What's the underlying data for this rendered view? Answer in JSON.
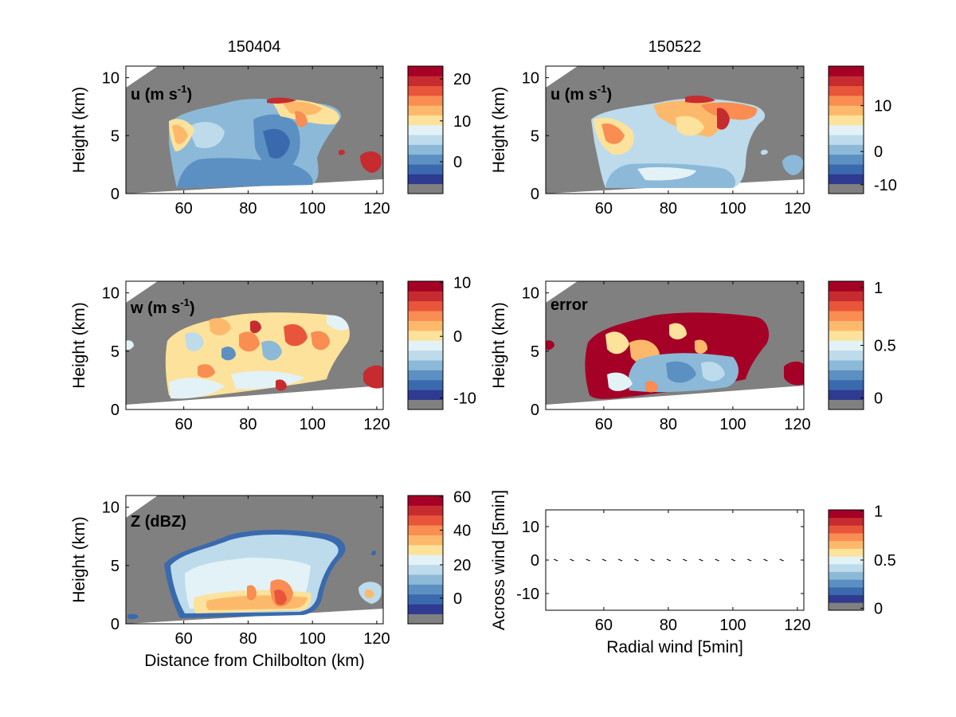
{
  "chart_data": {
    "type": "heatmap",
    "palette": [
      "#808080",
      "#2f3a91",
      "#3a6aad",
      "#5c90c2",
      "#8cb9d8",
      "#bddbeb",
      "#e3f2f6",
      "#fde29b",
      "#fdb96b",
      "#f98d52",
      "#e9553b",
      "#c62c2f",
      "#a50026"
    ],
    "panel_titles": [
      {
        "text": "150404"
      },
      {
        "text": "150522"
      }
    ],
    "panels": [
      {
        "id": "u-150404",
        "label": "u (m s",
        "label_sup": "-1",
        "label_close": ")",
        "ylabel": "Height (km)",
        "xlabel": "",
        "xlim": [
          42,
          122
        ],
        "ylim": [
          0,
          11
        ],
        "xticks": [
          "60",
          "80",
          "100",
          "120"
        ],
        "yticks": [
          "0",
          "5",
          "10"
        ],
        "colorbar_ticks": [
          "20",
          "10",
          "0"
        ]
      },
      {
        "id": "u-150522",
        "label": "u (m s",
        "label_sup": "-1",
        "label_close": ")",
        "ylabel": "Height (km)",
        "xlabel": "",
        "xlim": [
          42,
          122
        ],
        "ylim": [
          0,
          11
        ],
        "xticks": [
          "60",
          "80",
          "100",
          "120"
        ],
        "yticks": [
          "0",
          "5",
          "10"
        ],
        "colorbar_ticks": [
          "10",
          "0",
          "-10"
        ]
      },
      {
        "id": "w-150404",
        "label": "w (m s",
        "label_sup": "-1",
        "label_close": ")",
        "ylabel": "Height (km)",
        "xlabel": "",
        "xlim": [
          42,
          122
        ],
        "ylim": [
          0,
          11
        ],
        "xticks": [
          "60",
          "80",
          "100",
          "120"
        ],
        "yticks": [
          "0",
          "5",
          "10"
        ],
        "colorbar_ticks": [
          "10",
          "0",
          "-10"
        ]
      },
      {
        "id": "error-150522",
        "label": "error",
        "label_sup": "",
        "label_close": "",
        "ylabel": "Height (km)",
        "xlabel": "",
        "xlim": [
          42,
          122
        ],
        "ylim": [
          0,
          11
        ],
        "xticks": [
          "60",
          "80",
          "100",
          "120"
        ],
        "yticks": [
          "0",
          "5",
          "10"
        ],
        "colorbar_ticks": [
          "1",
          "0.5",
          "0"
        ]
      },
      {
        "id": "z-150404",
        "label": "Z (dBZ)",
        "label_sup": "",
        "label_close": "",
        "ylabel": "Height (km)",
        "xlabel": "Distance from Chilbolton (km)",
        "xlim": [
          42,
          122
        ],
        "ylim": [
          0,
          11
        ],
        "xticks": [
          "60",
          "80",
          "100",
          "120"
        ],
        "yticks": [
          "0",
          "5",
          "10"
        ],
        "colorbar_ticks": [
          "60",
          "40",
          "20",
          "0"
        ]
      },
      {
        "id": "wind-vectors",
        "label": "",
        "label_sup": "",
        "label_close": "",
        "ylabel": "Across wind [5min]",
        "xlabel": "Radial wind [5min]",
        "xlim": [
          42,
          122
        ],
        "ylim": [
          -15,
          15
        ],
        "xticks": [
          "60",
          "80",
          "100",
          "120"
        ],
        "yticks": [
          "-10",
          "0",
          "10"
        ],
        "colorbar_ticks": [
          "1",
          "0.5",
          "0"
        ],
        "vector_x": [
          45,
          50,
          55,
          60,
          65,
          70,
          75,
          80,
          85,
          90,
          95,
          100,
          105,
          110,
          115
        ]
      }
    ]
  }
}
